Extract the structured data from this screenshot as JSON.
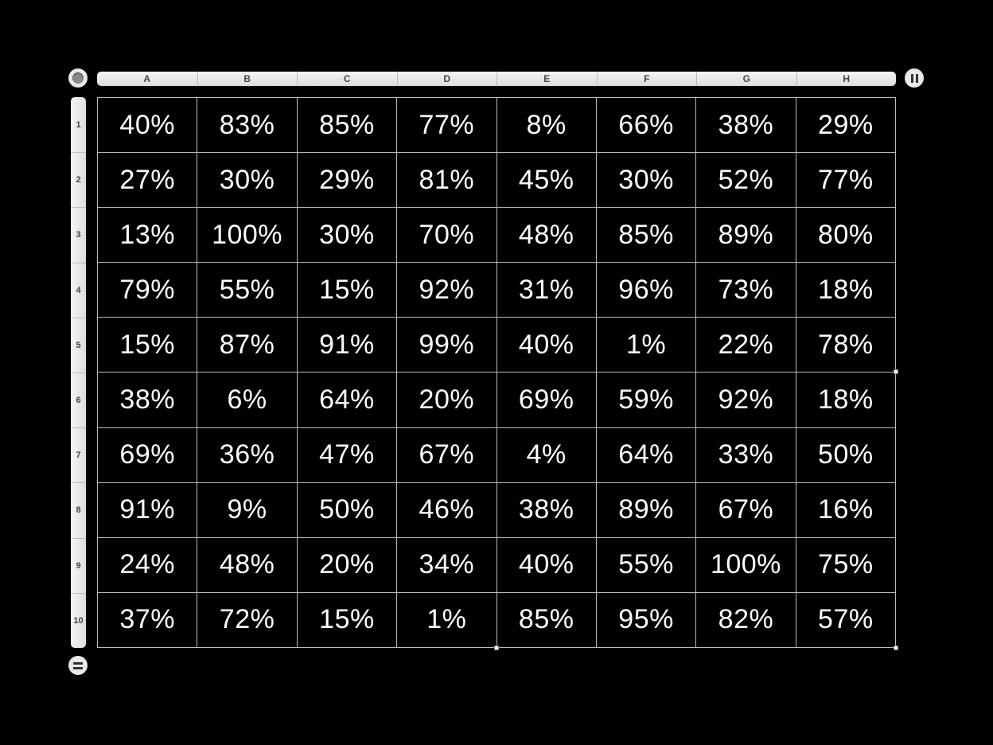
{
  "columns": [
    "A",
    "B",
    "C",
    "D",
    "E",
    "F",
    "G",
    "H"
  ],
  "rows": [
    "1",
    "2",
    "3",
    "4",
    "5",
    "6",
    "7",
    "8",
    "9",
    "10"
  ],
  "cells": [
    [
      "40%",
      "83%",
      "85%",
      "77%",
      "8%",
      "66%",
      "38%",
      "29%"
    ],
    [
      "27%",
      "30%",
      "29%",
      "81%",
      "45%",
      "30%",
      "52%",
      "77%"
    ],
    [
      "13%",
      "100%",
      "30%",
      "70%",
      "48%",
      "85%",
      "89%",
      "80%"
    ],
    [
      "79%",
      "55%",
      "15%",
      "92%",
      "31%",
      "96%",
      "73%",
      "18%"
    ],
    [
      "15%",
      "87%",
      "91%",
      "99%",
      "40%",
      "1%",
      "22%",
      "78%"
    ],
    [
      "38%",
      "6%",
      "64%",
      "20%",
      "69%",
      "59%",
      "92%",
      "18%"
    ],
    [
      "69%",
      "36%",
      "47%",
      "67%",
      "4%",
      "64%",
      "33%",
      "50%"
    ],
    [
      "91%",
      "9%",
      "50%",
      "46%",
      "38%",
      "89%",
      "67%",
      "16%"
    ],
    [
      "24%",
      "48%",
      "20%",
      "34%",
      "40%",
      "55%",
      "100%",
      "75%"
    ],
    [
      "37%",
      "72%",
      "15%",
      "1%",
      "85%",
      "95%",
      "82%",
      "57%"
    ]
  ],
  "icons": {
    "table_select": "circle-handle-icon",
    "add_column": "column-handle-icon",
    "add_row": "row-handle-icon"
  },
  "colors": {
    "background": "#000000",
    "cell_text": "#ffffff",
    "grid_line": "#bbbbbb",
    "header_bg": "#e9e9e9"
  }
}
